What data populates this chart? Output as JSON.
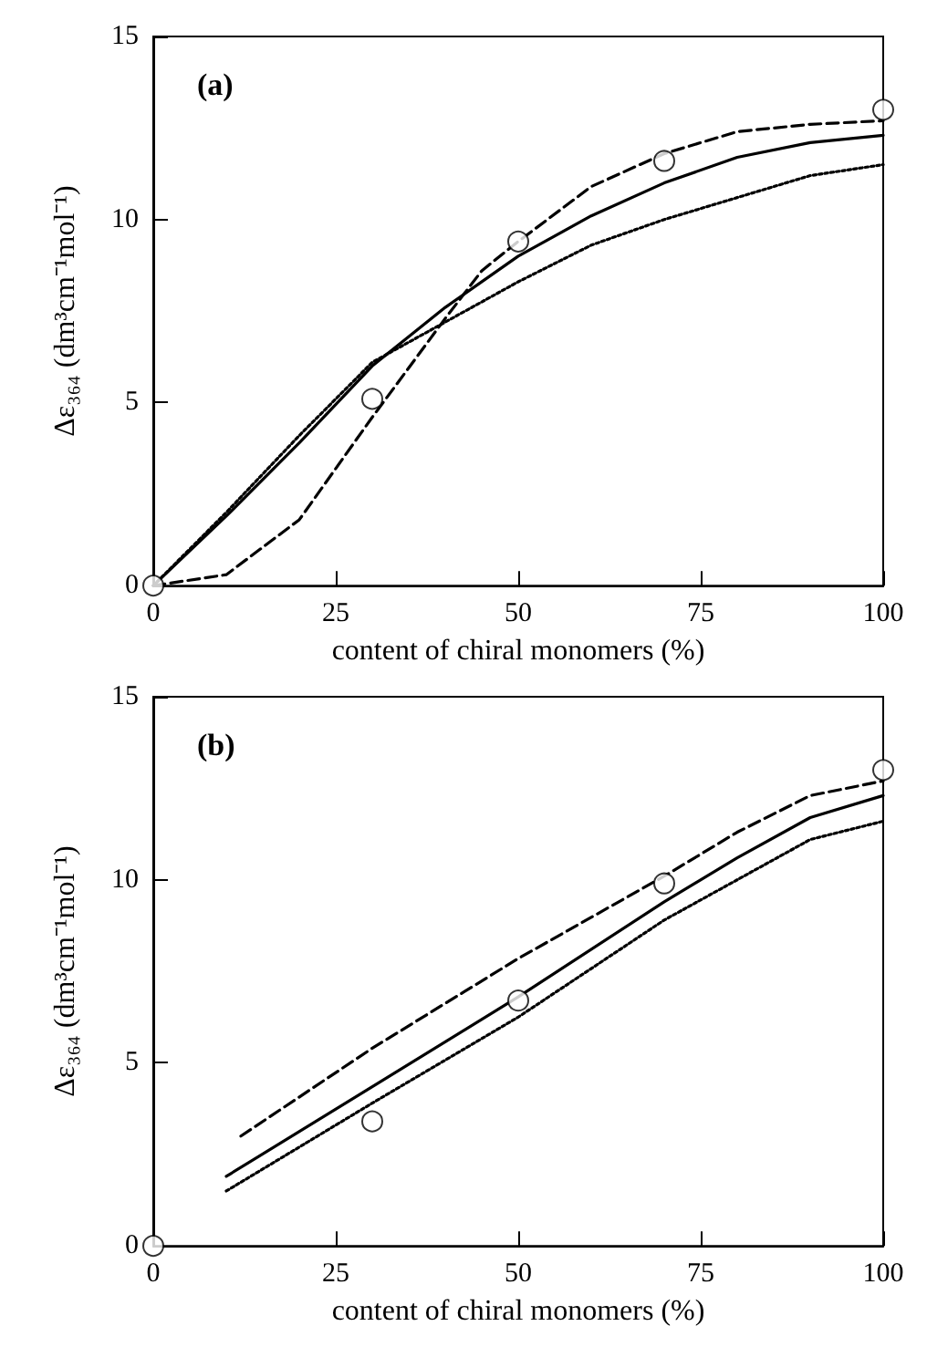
{
  "chart_data": [
    {
      "type": "line",
      "annotations": [
        "(a)"
      ],
      "xlabel": "content of chiral monomers (%)",
      "ylabel": "Δε₃₆₄ (dm³cm⁻¹mol⁻¹)",
      "xlim": [
        0,
        100
      ],
      "xticks": [
        0,
        25,
        50,
        75,
        100
      ],
      "ylim": [
        0,
        15
      ],
      "yticks": [
        0,
        5,
        10,
        15
      ],
      "grid": false,
      "series": [
        {
          "type": "scatter",
          "color": "#000000",
          "marker": "circle",
          "x": [
            0,
            30,
            50,
            70,
            100
          ],
          "values": [
            0,
            5.1,
            9.4,
            11.6,
            13
          ]
        },
        {
          "color": "#000000",
          "line_style": "solid",
          "marker": "none",
          "x": [
            0,
            10,
            20,
            30,
            40,
            50,
            60,
            70,
            80,
            90,
            100
          ],
          "values": [
            0,
            1.9,
            3.9,
            6.0,
            7.6,
            9.0,
            10.1,
            11.0,
            11.7,
            12.1,
            12.3
          ]
        },
        {
          "color": "#000000",
          "line_style": "dashed",
          "marker": "none",
          "x": [
            0,
            10,
            20,
            30,
            40,
            45,
            50,
            60,
            70,
            80,
            90,
            100
          ],
          "values": [
            0,
            0.3,
            1.8,
            4.6,
            7.3,
            8.6,
            9.4,
            10.9,
            11.8,
            12.4,
            12.6,
            12.7
          ]
        },
        {
          "color": "#000000",
          "line_style": "dotted",
          "marker": "none",
          "x": [
            0,
            10,
            20,
            30,
            40,
            50,
            60,
            70,
            80,
            90,
            100
          ],
          "values": [
            0,
            2.0,
            4.1,
            6.1,
            7.2,
            8.3,
            9.3,
            10.0,
            10.6,
            11.2,
            11.5
          ]
        }
      ]
    },
    {
      "type": "line",
      "annotations": [
        "(b)"
      ],
      "xlabel": "content of chiral monomers (%)",
      "ylabel": "Δε₃₆₄ (dm³cm⁻¹mol⁻¹)",
      "xlim": [
        0,
        100
      ],
      "xticks": [
        0,
        25,
        50,
        75,
        100
      ],
      "ylim": [
        0,
        15
      ],
      "yticks": [
        0,
        5,
        10,
        15
      ],
      "grid": false,
      "series": [
        {
          "type": "scatter",
          "color": "#000000",
          "marker": "circle",
          "x": [
            0,
            30,
            50,
            70,
            100
          ],
          "values": [
            0,
            3.4,
            6.7,
            9.9,
            13
          ]
        },
        {
          "color": "#000000",
          "line_style": "solid",
          "marker": "none",
          "x": [
            10,
            30,
            50,
            70,
            80,
            90,
            100
          ],
          "values": [
            1.9,
            4.35,
            6.8,
            9.4,
            10.6,
            11.7,
            12.3
          ]
        },
        {
          "color": "#000000",
          "line_style": "dashed",
          "marker": "none",
          "x": [
            12,
            30,
            50,
            70,
            80,
            90,
            100
          ],
          "values": [
            3.0,
            5.4,
            7.85,
            10.1,
            11.3,
            12.3,
            12.7
          ]
        },
        {
          "color": "#000000",
          "line_style": "dotted",
          "marker": "none",
          "x": [
            10,
            30,
            50,
            70,
            80,
            90,
            100
          ],
          "values": [
            1.5,
            3.9,
            6.25,
            8.9,
            10.0,
            11.1,
            11.6
          ]
        }
      ]
    }
  ]
}
